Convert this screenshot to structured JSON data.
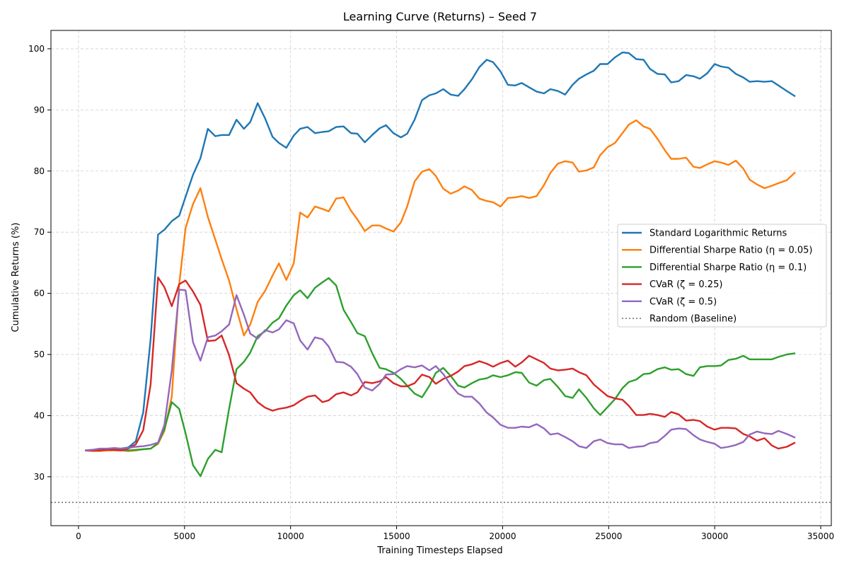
{
  "chart_data": {
    "type": "line",
    "title": "Learning Curve (Returns) – Seed 7",
    "xlabel": "Training Timesteps Elapsed",
    "ylabel": "Cumulative Returns (%)",
    "xlim": [
      -1300,
      35500
    ],
    "ylim": [
      22,
      103
    ],
    "xticks": [
      0,
      5000,
      10000,
      15000,
      20000,
      25000,
      30000,
      35000
    ],
    "yticks": [
      30,
      40,
      50,
      60,
      70,
      80,
      90,
      100
    ],
    "grid": true,
    "legend_position": "center-right",
    "x": [
      300,
      650,
      1000,
      1350,
      1700,
      2000,
      2350,
      2700,
      3050,
      3400,
      3750,
      4050,
      4400,
      4750,
      5050,
      5400,
      5750,
      6100,
      6450,
      6750,
      7100,
      7450,
      7800,
      8100,
      8450,
      8800,
      9150,
      9450,
      9800,
      10150,
      10450,
      10800,
      11150,
      11500,
      11800,
      12150,
      12500,
      12850,
      13150,
      13500,
      13850,
      14200,
      14500,
      14850,
      15200,
      15500,
      15850,
      16200,
      16550,
      16850,
      17200,
      17550,
      17900,
      18200,
      18550,
      18900,
      19250,
      19550,
      19900,
      20250,
      20600,
      20900,
      21250,
      21600,
      21950,
      22250,
      22600,
      22950,
      23300,
      23600,
      23950,
      24300,
      24600,
      24950,
      25300,
      25650,
      25950,
      26300,
      26650,
      26950,
      27300,
      27650,
      27950,
      28300,
      28650,
      29000,
      29300,
      29650,
      30000,
      30300,
      30650,
      31000,
      31350,
      31650,
      32000,
      32350,
      32700,
      33000,
      33400,
      33800
    ],
    "series": [
      {
        "name": "Standard Logarithmic Returns",
        "color": "#1f77b4",
        "values": [
          34.3,
          34.4,
          34.5,
          34.5,
          34.6,
          34.6,
          34.8,
          35.8,
          40.5,
          52.5,
          69.6,
          70.4,
          71.8,
          72.7,
          75.8,
          79.4,
          82.1,
          86.9,
          85.7,
          85.9,
          85.9,
          88.4,
          86.9,
          88.0,
          91.1,
          88.6,
          85.6,
          84.6,
          83.8,
          85.8,
          86.9,
          87.2,
          86.2,
          86.4,
          86.5,
          87.2,
          87.3,
          86.2,
          86.1,
          84.7,
          85.9,
          87.0,
          87.5,
          86.2,
          85.5,
          86.1,
          88.4,
          91.6,
          92.4,
          92.7,
          93.4,
          92.5,
          92.3,
          93.4,
          95.0,
          97.0,
          98.2,
          97.8,
          96.3,
          94.1,
          94.0,
          94.4,
          93.7,
          93.0,
          92.7,
          93.4,
          93.1,
          92.5,
          94.1,
          95.1,
          95.8,
          96.4,
          97.5,
          97.5,
          98.6,
          99.4,
          99.3,
          98.3,
          98.2,
          96.7,
          95.9,
          95.8,
          94.5,
          94.7,
          95.7,
          95.5,
          95.1,
          96.0,
          97.5,
          97.1,
          96.9,
          95.9,
          95.3,
          94.6,
          94.7,
          94.6,
          94.7,
          94.0,
          93.1,
          92.2
        ]
      },
      {
        "name": "Differential Sharpe Ratio (η = 0.05)",
        "color": "#ff7f0e",
        "values": [
          34.3,
          34.2,
          34.2,
          34.3,
          34.3,
          34.3,
          34.2,
          34.3,
          34.5,
          34.6,
          35.4,
          37.5,
          43.1,
          61.5,
          70.7,
          74.6,
          77.2,
          72.5,
          68.8,
          65.6,
          62.1,
          57.4,
          53.1,
          54.9,
          58.6,
          60.4,
          62.9,
          64.9,
          62.2,
          64.9,
          73.2,
          72.4,
          74.2,
          73.8,
          73.4,
          75.5,
          75.7,
          73.5,
          72.1,
          70.2,
          71.1,
          71.1,
          70.6,
          70.1,
          71.6,
          74.2,
          78.3,
          79.9,
          80.3,
          79.2,
          77.1,
          76.3,
          76.8,
          77.5,
          76.9,
          75.5,
          75.1,
          74.9,
          74.2,
          75.6,
          75.7,
          75.9,
          75.6,
          75.9,
          77.7,
          79.7,
          81.2,
          81.6,
          81.4,
          79.9,
          80.1,
          80.6,
          82.6,
          83.9,
          84.6,
          86.2,
          87.6,
          88.3,
          87.3,
          86.9,
          85.3,
          83.4,
          82.0,
          82.0,
          82.2,
          80.7,
          80.5,
          81.1,
          81.6,
          81.4,
          81.0,
          81.7,
          80.4,
          78.6,
          77.8,
          77.2,
          77.6,
          78.0,
          78.5,
          79.8
        ]
      },
      {
        "name": "Differential Sharpe Ratio (η = 0.1)",
        "color": "#2ca02c",
        "values": [
          34.3,
          34.3,
          34.4,
          34.4,
          34.4,
          34.4,
          34.3,
          34.4,
          34.5,
          34.6,
          35.5,
          37.8,
          42.2,
          41.1,
          37.1,
          31.9,
          30.1,
          32.9,
          34.4,
          34.0,
          41.1,
          47.6,
          48.8,
          50.3,
          53.0,
          53.8,
          55.2,
          55.9,
          58.0,
          59.7,
          60.5,
          59.2,
          60.9,
          61.8,
          62.5,
          61.3,
          57.3,
          55.3,
          53.5,
          53.0,
          50.2,
          47.8,
          47.6,
          47.0,
          46.0,
          44.9,
          43.6,
          43.0,
          44.9,
          47.0,
          47.8,
          46.5,
          44.9,
          44.6,
          45.3,
          45.9,
          46.1,
          46.6,
          46.3,
          46.6,
          47.1,
          47.0,
          45.4,
          44.9,
          45.8,
          46.0,
          44.7,
          43.2,
          42.9,
          44.3,
          42.9,
          41.2,
          40.1,
          41.4,
          42.7,
          44.5,
          45.5,
          45.9,
          46.8,
          46.9,
          47.6,
          47.9,
          47.5,
          47.6,
          46.8,
          46.5,
          47.9,
          48.1,
          48.1,
          48.2,
          49.1,
          49.3,
          49.8,
          49.2,
          49.2,
          49.2,
          49.2,
          49.6,
          50.0,
          50.2
        ]
      },
      {
        "name": "CVaR (ζ = 0.25)",
        "color": "#d62728",
        "values": [
          34.3,
          34.3,
          34.3,
          34.4,
          34.4,
          34.3,
          34.6,
          35.3,
          37.6,
          45.1,
          62.6,
          61.0,
          57.9,
          61.5,
          62.1,
          60.3,
          58.1,
          52.2,
          52.3,
          53.1,
          49.9,
          45.3,
          44.4,
          43.8,
          42.2,
          41.3,
          40.8,
          41.1,
          41.3,
          41.7,
          42.4,
          43.1,
          43.3,
          42.2,
          42.5,
          43.5,
          43.8,
          43.3,
          43.8,
          45.5,
          45.3,
          45.6,
          46.3,
          45.3,
          44.8,
          44.8,
          45.3,
          46.7,
          46.3,
          45.2,
          46.0,
          46.5,
          47.2,
          48.1,
          48.4,
          48.9,
          48.5,
          48.0,
          48.6,
          49.0,
          48.0,
          48.7,
          49.8,
          49.2,
          48.6,
          47.7,
          47.4,
          47.5,
          47.7,
          47.1,
          46.6,
          45.1,
          44.2,
          43.2,
          42.8,
          42.6,
          41.6,
          40.1,
          40.1,
          40.3,
          40.1,
          39.8,
          40.6,
          40.2,
          39.2,
          39.3,
          39.1,
          38.2,
          37.7,
          38.0,
          38.0,
          37.9,
          37.0,
          36.6,
          35.9,
          36.3,
          35.1,
          34.6,
          34.9,
          35.6
        ]
      },
      {
        "name": "CVaR (ζ = 0.5)",
        "color": "#9467bd",
        "values": [
          34.3,
          34.4,
          34.6,
          34.6,
          34.7,
          34.6,
          34.7,
          34.9,
          35.0,
          35.2,
          35.6,
          38.5,
          47.4,
          60.6,
          60.5,
          52.0,
          49.0,
          52.8,
          53.1,
          53.8,
          54.9,
          59.7,
          56.5,
          53.4,
          52.6,
          54.0,
          53.6,
          54.1,
          55.6,
          55.1,
          52.3,
          50.8,
          52.8,
          52.5,
          51.3,
          48.8,
          48.7,
          48.0,
          46.8,
          44.6,
          44.1,
          45.2,
          46.7,
          46.8,
          47.6,
          48.1,
          47.9,
          48.2,
          47.4,
          48.1,
          46.8,
          45.0,
          43.6,
          43.1,
          43.1,
          42.0,
          40.5,
          39.7,
          38.5,
          38.0,
          38.0,
          38.2,
          38.1,
          38.6,
          37.9,
          36.9,
          37.1,
          36.5,
          35.8,
          35.0,
          34.7,
          35.8,
          36.1,
          35.5,
          35.3,
          35.3,
          34.7,
          34.9,
          35.0,
          35.5,
          35.7,
          36.7,
          37.7,
          37.9,
          37.8,
          36.8,
          36.1,
          35.7,
          35.4,
          34.7,
          34.9,
          35.2,
          35.7,
          36.9,
          37.4,
          37.1,
          37.0,
          37.5,
          37.0,
          36.4
        ]
      }
    ],
    "baseline": {
      "name": "Random (Baseline)",
      "color": "#808080",
      "value": 25.8
    }
  }
}
